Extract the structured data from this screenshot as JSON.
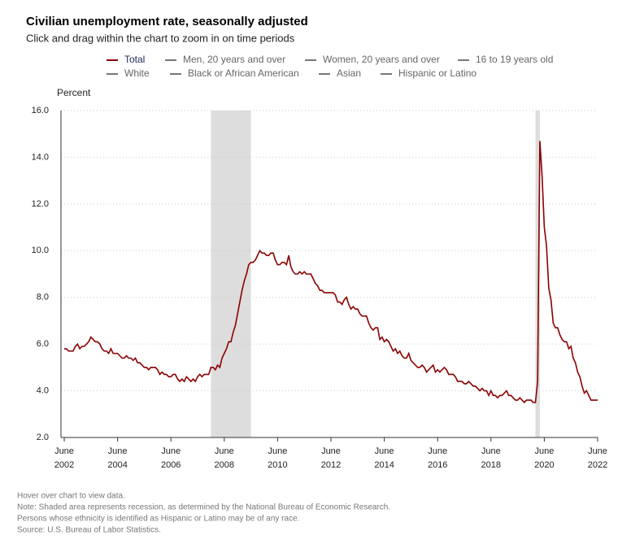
{
  "chart_data": {
    "type": "line",
    "title": "Civilian unemployment rate, seasonally adjusted",
    "subtitle": "Click and drag within the chart to zoom in on time periods",
    "y_label": "Percent",
    "series": [
      {
        "name": "Total",
        "color": "#8b0000",
        "values": [
          5.8,
          5.8,
          5.7,
          5.7,
          5.7,
          5.9,
          6.0,
          5.8,
          5.9,
          5.9,
          6.0,
          6.1,
          6.3,
          6.2,
          6.1,
          6.1,
          6.0,
          5.8,
          5.7,
          5.7,
          5.6,
          5.8,
          5.6,
          5.6,
          5.6,
          5.5,
          5.4,
          5.4,
          5.5,
          5.4,
          5.4,
          5.3,
          5.4,
          5.2,
          5.2,
          5.1,
          5.0,
          5.0,
          4.9,
          5.0,
          5.0,
          5.0,
          4.9,
          4.7,
          4.8,
          4.7,
          4.7,
          4.6,
          4.6,
          4.7,
          4.7,
          4.5,
          4.4,
          4.5,
          4.4,
          4.6,
          4.5,
          4.4,
          4.5,
          4.4,
          4.6,
          4.7,
          4.6,
          4.7,
          4.7,
          4.7,
          5.0,
          5.0,
          4.9,
          5.1,
          5.0,
          5.4,
          5.6,
          5.8,
          6.1,
          6.1,
          6.5,
          6.8,
          7.3,
          7.8,
          8.3,
          8.7,
          9.0,
          9.4,
          9.5,
          9.5,
          9.6,
          9.8,
          10.0,
          9.9,
          9.9,
          9.8,
          9.8,
          9.9,
          9.9,
          9.6,
          9.4,
          9.4,
          9.5,
          9.5,
          9.4,
          9.8,
          9.3,
          9.1,
          9.0,
          9.0,
          9.1,
          9.0,
          9.1,
          9.0,
          9.0,
          9.0,
          8.8,
          8.6,
          8.5,
          8.3,
          8.3,
          8.2,
          8.2,
          8.2,
          8.2,
          8.2,
          8.1,
          7.8,
          7.8,
          7.7,
          7.9,
          8.0,
          7.7,
          7.5,
          7.6,
          7.5,
          7.5,
          7.3,
          7.2,
          7.2,
          7.2,
          6.9,
          6.7,
          6.6,
          6.7,
          6.7,
          6.2,
          6.3,
          6.1,
          6.2,
          6.1,
          5.9,
          5.7,
          5.8,
          5.6,
          5.7,
          5.5,
          5.4,
          5.4,
          5.6,
          5.3,
          5.2,
          5.1,
          5.0,
          5.0,
          5.1,
          5.0,
          4.8,
          4.9,
          5.0,
          5.1,
          4.8,
          4.9,
          4.8,
          4.9,
          5.0,
          4.9,
          4.7,
          4.7,
          4.7,
          4.6,
          4.4,
          4.4,
          4.4,
          4.3,
          4.3,
          4.4,
          4.3,
          4.2,
          4.2,
          4.1,
          4.0,
          4.1,
          4.0,
          4.0,
          3.8,
          4.0,
          3.8,
          3.8,
          3.7,
          3.8,
          3.8,
          3.9,
          4.0,
          3.8,
          3.8,
          3.7,
          3.6,
          3.6,
          3.7,
          3.6,
          3.5,
          3.6,
          3.6,
          3.6,
          3.5,
          3.5,
          4.4,
          14.7,
          13.2,
          11.0,
          10.2,
          8.4,
          7.9,
          6.9,
          6.7,
          6.7,
          6.4,
          6.2,
          6.1,
          6.1,
          5.8,
          5.9,
          5.4,
          5.2,
          4.8,
          4.6,
          4.2,
          3.9,
          4.0,
          3.8,
          3.6,
          3.6,
          3.6,
          3.6
        ]
      }
    ],
    "inactive_series": [
      {
        "name": "Men, 20 years and over",
        "color": "#777777"
      },
      {
        "name": "Women, 20 years and over",
        "color": "#777777"
      },
      {
        "name": "16 to 19 years old",
        "color": "#777777"
      },
      {
        "name": "White",
        "color": "#777777"
      },
      {
        "name": "Black or African American",
        "color": "#777777"
      },
      {
        "name": "Asian",
        "color": "#777777"
      },
      {
        "name": "Hispanic or Latino",
        "color": "#777777"
      }
    ],
    "x_start": "2002-06",
    "xlim": [
      "2002-06",
      "2022-06"
    ],
    "xticks": [
      {
        "value": "2002-06",
        "label": "June 2002"
      },
      {
        "value": "2004-06",
        "label": "June 2004"
      },
      {
        "value": "2006-06",
        "label": "June 2006"
      },
      {
        "value": "2008-06",
        "label": "June 2008"
      },
      {
        "value": "2010-06",
        "label": "June 2010"
      },
      {
        "value": "2012-06",
        "label": "June 2012"
      },
      {
        "value": "2014-06",
        "label": "June 2014"
      },
      {
        "value": "2016-06",
        "label": "June 2016"
      },
      {
        "value": "2018-06",
        "label": "June 2018"
      },
      {
        "value": "2020-06",
        "label": "June 2020"
      },
      {
        "value": "2022-06",
        "label": "June 2022"
      }
    ],
    "ylim": [
      2,
      16
    ],
    "yticks": [
      {
        "value": 2,
        "label": "2.0"
      },
      {
        "value": 4,
        "label": "4.0"
      },
      {
        "value": 6,
        "label": "6.0"
      },
      {
        "value": 8,
        "label": "8.0"
      },
      {
        "value": 10,
        "label": "10.0"
      },
      {
        "value": 12,
        "label": "12.0"
      },
      {
        "value": 14,
        "label": "14.0"
      },
      {
        "value": 16,
        "label": "16.0"
      }
    ],
    "grid": true,
    "recessions": [
      {
        "start": "2007-12",
        "end": "2009-06"
      },
      {
        "start": "2020-02",
        "end": "2020-04"
      }
    ],
    "recession_color": "#dddddd",
    "notes": [
      "Hover over chart to view data.",
      "Note: Shaded area represents recession, as determined by the National Bureau of Economic Research.",
      "Persons whose ethnicity is identified as Hispanic or Latino may be of any race.",
      "Source: U.S. Bureau of Labor Statistics."
    ]
  }
}
